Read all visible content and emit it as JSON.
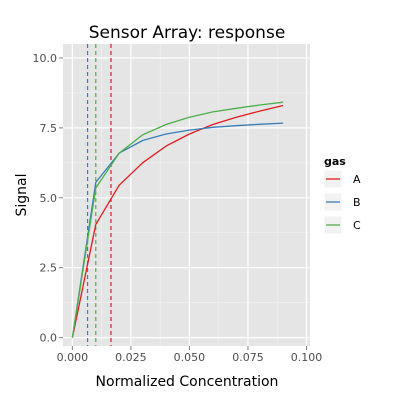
{
  "chart_data": {
    "type": "line",
    "title": "Sensor Array: response",
    "xlabel": "Normalized Concentration",
    "ylabel": "Signal",
    "xlim": [
      -0.004,
      0.1015
    ],
    "ylim": [
      -0.3,
      10.5
    ],
    "x_ticks": [
      {
        "value": 0.0,
        "label": "0.000"
      },
      {
        "value": 0.025,
        "label": "0.025"
      },
      {
        "value": 0.05,
        "label": "0.050"
      },
      {
        "value": 0.075,
        "label": "0.075"
      },
      {
        "value": 0.1,
        "label": "0.100"
      }
    ],
    "y_ticks": [
      {
        "value": 0.0,
        "label": "0.0"
      },
      {
        "value": 2.5,
        "label": "2.5"
      },
      {
        "value": 5.0,
        "label": "5.0"
      },
      {
        "value": 7.5,
        "label": "7.5"
      },
      {
        "value": 10.0,
        "label": "10.0"
      }
    ],
    "grid": true,
    "legend": {
      "title": "gas",
      "position": "right"
    },
    "series": [
      {
        "name": "A",
        "color": "#e41a1c",
        "x": [
          0,
          0.01,
          0.02,
          0.03,
          0.04,
          0.05,
          0.06,
          0.07,
          0.08,
          0.09
        ],
        "y": [
          0,
          4.05,
          5.45,
          6.25,
          6.85,
          7.28,
          7.62,
          7.88,
          8.1,
          8.3
        ]
      },
      {
        "name": "B",
        "color": "#377eb8",
        "x": [
          0,
          0.01,
          0.02,
          0.03,
          0.04,
          0.05,
          0.06,
          0.07,
          0.08,
          0.09
        ],
        "y": [
          0,
          5.55,
          6.6,
          7.05,
          7.28,
          7.42,
          7.52,
          7.58,
          7.63,
          7.67
        ]
      },
      {
        "name": "C",
        "color": "#4daf4a",
        "x": [
          0,
          0.01,
          0.02,
          0.03,
          0.04,
          0.05,
          0.06,
          0.07,
          0.08,
          0.09
        ],
        "y": [
          0,
          5.35,
          6.6,
          7.25,
          7.62,
          7.88,
          8.07,
          8.2,
          8.32,
          8.42
        ]
      }
    ],
    "vlines": [
      {
        "series": "B",
        "x": 0.0065,
        "color": "#377eb8"
      },
      {
        "series": "C",
        "x": 0.01,
        "color": "#4daf4a"
      },
      {
        "series": "A",
        "x": 0.0165,
        "color": "#e41a1c"
      }
    ]
  }
}
